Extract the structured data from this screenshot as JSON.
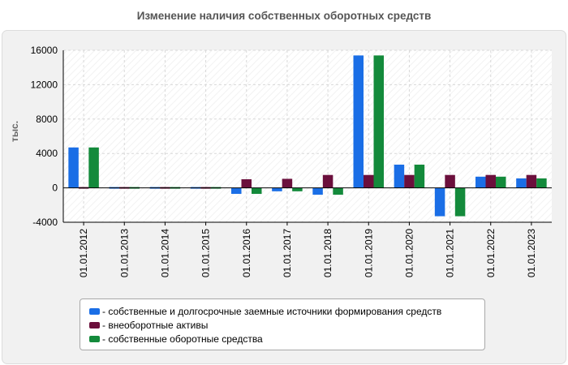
{
  "chart_data": {
    "type": "bar",
    "title": "Изменение наличия собственных оборотных средств",
    "xlabel": "",
    "ylabel": "тыс.",
    "ylim": [
      -4000,
      16000
    ],
    "yticks": [
      -4000,
      0,
      4000,
      8000,
      12000,
      16000
    ],
    "grid": true,
    "legend_position": "bottom",
    "categories": [
      "01.01.2012",
      "01.01.2013",
      "01.01.2014",
      "01.01.2015",
      "01.01.2016",
      "01.01.2017",
      "01.01.2018",
      "01.01.2019",
      "01.01.2020",
      "01.01.2021",
      "01.01.2022",
      "01.01.2023"
    ],
    "series": [
      {
        "name": "- собственные и долгосрочные заемные источники формирования средств",
        "color": "#1a6ee6",
        "values": [
          4700,
          150,
          150,
          150,
          -700,
          -400,
          -800,
          15400,
          2700,
          -3300,
          1300,
          1100
        ]
      },
      {
        "name": "- внеоборотные активы",
        "color": "#6b0f3c",
        "values": [
          100,
          150,
          150,
          150,
          1000,
          1050,
          1500,
          1500,
          1500,
          1500,
          1500,
          1500
        ]
      },
      {
        "name": "- собственные оборотные средства",
        "color": "#138a3b",
        "values": [
          4700,
          150,
          150,
          150,
          -700,
          -400,
          -800,
          15400,
          2700,
          -3300,
          1300,
          1100
        ]
      }
    ]
  }
}
